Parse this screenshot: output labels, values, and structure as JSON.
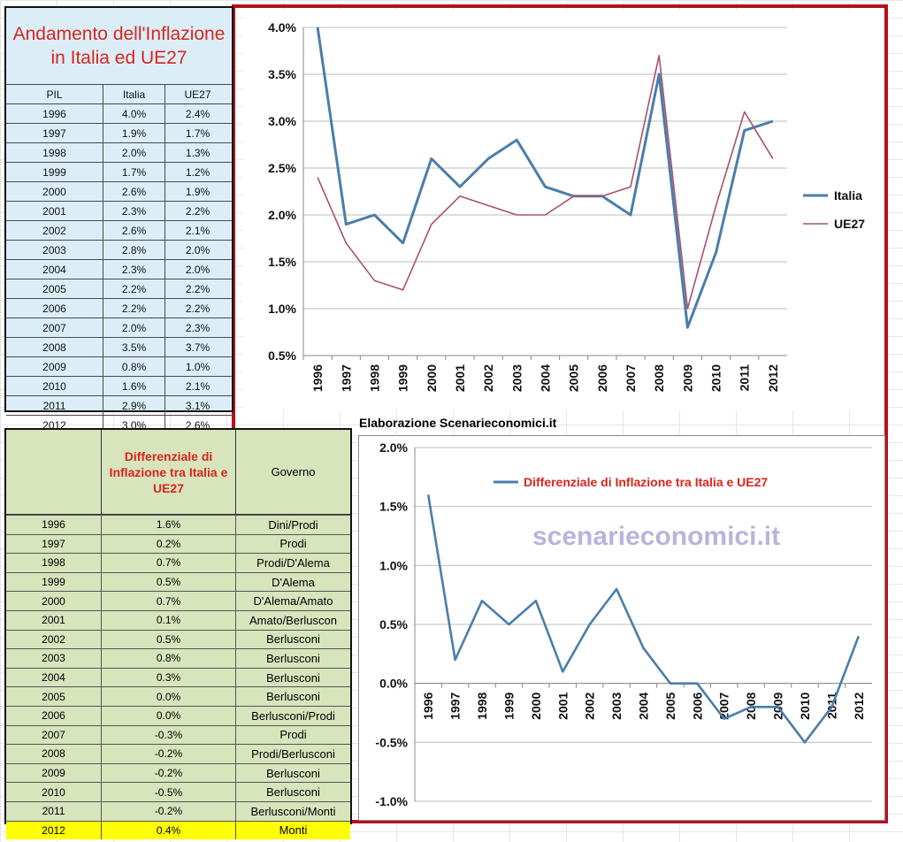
{
  "table1": {
    "title": "Andamento dell'Inflazione in Italia ed UE27",
    "headers": [
      "PIL",
      "Italia",
      "UE27"
    ],
    "rows": [
      [
        "1996",
        "4.0%",
        "2.4%"
      ],
      [
        "1997",
        "1.9%",
        "1.7%"
      ],
      [
        "1998",
        "2.0%",
        "1.3%"
      ],
      [
        "1999",
        "1.7%",
        "1.2%"
      ],
      [
        "2000",
        "2.6%",
        "1.9%"
      ],
      [
        "2001",
        "2.3%",
        "2.2%"
      ],
      [
        "2002",
        "2.6%",
        "2.1%"
      ],
      [
        "2003",
        "2.8%",
        "2.0%"
      ],
      [
        "2004",
        "2.3%",
        "2.0%"
      ],
      [
        "2005",
        "2.2%",
        "2.2%"
      ],
      [
        "2006",
        "2.2%",
        "2.2%"
      ],
      [
        "2007",
        "2.0%",
        "2.3%"
      ],
      [
        "2008",
        "3.5%",
        "3.7%"
      ],
      [
        "2009",
        "0.8%",
        "1.0%"
      ],
      [
        "2010",
        "1.6%",
        "2.1%"
      ],
      [
        "2011",
        "2.9%",
        "3.1%"
      ],
      [
        "2012",
        "3.0%",
        "2.6%"
      ]
    ]
  },
  "table2": {
    "headers": [
      "",
      "Differenziale di Inflazione tra Italia e UE27",
      "Governo"
    ],
    "rows": [
      [
        "1996",
        "1.6%",
        "Dini/Prodi"
      ],
      [
        "1997",
        "0.2%",
        "Prodi"
      ],
      [
        "1998",
        "0.7%",
        "Prodi/D'Alema"
      ],
      [
        "1999",
        "0.5%",
        "D'Alema"
      ],
      [
        "2000",
        "0.7%",
        "D'Alema/Amato"
      ],
      [
        "2001",
        "0.1%",
        "Amato/Berluscon"
      ],
      [
        "2002",
        "0.5%",
        "Berlusconi"
      ],
      [
        "2003",
        "0.8%",
        "Berlusconi"
      ],
      [
        "2004",
        "0.3%",
        "Berlusconi"
      ],
      [
        "2005",
        "0.0%",
        "Berlusconi"
      ],
      [
        "2006",
        "0.0%",
        "Berlusconi/Prodi"
      ],
      [
        "2007",
        "-0.3%",
        "Prodi"
      ],
      [
        "2008",
        "-0.2%",
        "Prodi/Berlusconi"
      ],
      [
        "2009",
        "-0.2%",
        "Berlusconi"
      ],
      [
        "2010",
        "-0.5%",
        "Berlusconi"
      ],
      [
        "2011",
        "-0.2%",
        "Berlusconi/Monti"
      ],
      [
        "2012",
        "0.4%",
        "Monti"
      ]
    ]
  },
  "caption": "Elaborazione Scenarieconomici.it",
  "watermark": "scenarieconomici.it",
  "colors": {
    "italia": "#4a7eab",
    "ue27": "#a9506d",
    "accent_red": "#d9261c",
    "frame": "#b5121b"
  },
  "chart_data": [
    {
      "type": "line",
      "x": [
        "1996",
        "1997",
        "1998",
        "1999",
        "2000",
        "2001",
        "2002",
        "2003",
        "2004",
        "2005",
        "2006",
        "2007",
        "2008",
        "2009",
        "2010",
        "2011",
        "2012"
      ],
      "series": [
        {
          "name": "Italia",
          "values": [
            4.0,
            1.9,
            2.0,
            1.7,
            2.6,
            2.3,
            2.6,
            2.8,
            2.3,
            2.2,
            2.2,
            2.0,
            3.5,
            0.8,
            1.6,
            2.9,
            3.0
          ]
        },
        {
          "name": "UE27",
          "values": [
            2.4,
            1.7,
            1.3,
            1.2,
            1.9,
            2.2,
            2.1,
            2.0,
            2.0,
            2.2,
            2.2,
            2.3,
            3.7,
            1.0,
            2.1,
            3.1,
            2.6
          ]
        }
      ],
      "yticks": [
        "0.5%",
        "1.0%",
        "1.5%",
        "2.0%",
        "2.5%",
        "3.0%",
        "3.5%",
        "4.0%"
      ],
      "ylim": [
        0.5,
        4.0
      ],
      "grid": true,
      "legend": "right"
    },
    {
      "type": "line",
      "x": [
        "1996",
        "1997",
        "1998",
        "1999",
        "2000",
        "2001",
        "2002",
        "2003",
        "2004",
        "2005",
        "2006",
        "2007",
        "2008",
        "2009",
        "2010",
        "2011",
        "2012"
      ],
      "series": [
        {
          "name": "Differenziale di Inflazione tra Italia e UE27",
          "values": [
            1.6,
            0.2,
            0.7,
            0.5,
            0.7,
            0.1,
            0.5,
            0.8,
            0.3,
            0.0,
            0.0,
            -0.3,
            -0.2,
            -0.2,
            -0.5,
            -0.2,
            0.4
          ]
        }
      ],
      "yticks": [
        "-1.0%",
        "-0.5%",
        "0.0%",
        "0.5%",
        "1.0%",
        "1.5%",
        "2.0%"
      ],
      "ylim": [
        -1.0,
        2.0
      ],
      "grid": true,
      "legend": "top"
    }
  ]
}
